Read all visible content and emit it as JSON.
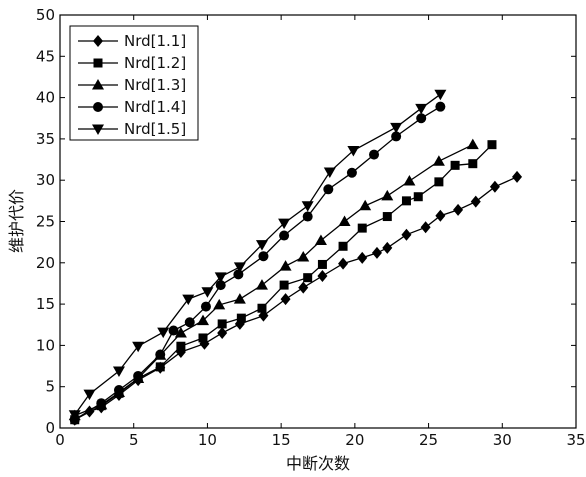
{
  "chart_data": {
    "type": "line",
    "xlabel": "中断次数",
    "ylabel": "维护代价",
    "xlim": [
      0,
      35
    ],
    "ylim": [
      0,
      50
    ],
    "x_ticks": [
      0,
      5,
      10,
      15,
      20,
      25,
      30,
      35
    ],
    "y_ticks": [
      0,
      5,
      10,
      15,
      20,
      25,
      30,
      35,
      40,
      45,
      50
    ],
    "grid": false,
    "legend_position": "top-left",
    "series": [
      {
        "name": "Nrd[1.1]",
        "marker": "diamond",
        "x": [
          1,
          2,
          2.8,
          4,
          5.3,
          6.8,
          8.2,
          9.8,
          11,
          12.2,
          13.8,
          15.3,
          16.5,
          17.8,
          19.2,
          20.5,
          21.5,
          22.2,
          23.5,
          24.8,
          25.8,
          27,
          28.2,
          29.5,
          31
        ],
        "y": [
          1,
          2,
          2.5,
          4,
          5.8,
          7.3,
          9.2,
          10.2,
          11.5,
          12.6,
          13.6,
          15.6,
          17,
          18.4,
          19.9,
          20.6,
          21.2,
          21.8,
          23.4,
          24.3,
          25.7,
          26.4,
          27.4,
          29.2,
          30.4
        ]
      },
      {
        "name": "Nrd[1.2]",
        "marker": "square",
        "x": [
          1,
          2.8,
          4,
          5.3,
          6.8,
          8.2,
          9.7,
          11,
          12.3,
          13.7,
          15.2,
          16.8,
          17.8,
          19.2,
          20.5,
          22.2,
          23.5,
          24.3,
          25.7,
          26.8,
          28,
          29.3
        ],
        "y": [
          1,
          2.7,
          4.2,
          6,
          7.4,
          9.9,
          10.9,
          12.6,
          13.3,
          14.5,
          17.3,
          18.2,
          19.8,
          22,
          24.2,
          25.6,
          27.5,
          28,
          29.8,
          31.8,
          32,
          34.3
        ]
      },
      {
        "name": "Nrd[1.3]",
        "marker": "triangle-up",
        "x": [
          1,
          2.8,
          4,
          5.3,
          6.8,
          8.2,
          9.7,
          10.8,
          12.2,
          13.7,
          15.3,
          16.5,
          17.7,
          19.3,
          20.7,
          22.2,
          23.7,
          25.7,
          28
        ],
        "y": [
          1.5,
          2.8,
          4.3,
          6,
          8.8,
          11.5,
          13,
          14.9,
          15.6,
          17.3,
          19.6,
          20.7,
          22.7,
          25,
          26.9,
          28.1,
          29.9,
          32.3,
          34.3
        ]
      },
      {
        "name": "Nrd[1.4]",
        "marker": "circle",
        "x": [
          1,
          2.8,
          4,
          5.3,
          6.8,
          7.7,
          8.8,
          9.9,
          10.9,
          12.1,
          13.8,
          15.2,
          16.8,
          18.2,
          19.8,
          21.3,
          22.8,
          24.5,
          25.8
        ],
        "y": [
          1,
          3,
          4.6,
          6.3,
          8.9,
          11.8,
          12.8,
          14.7,
          17.3,
          18.6,
          20.8,
          23.3,
          25.6,
          28.9,
          30.9,
          33.1,
          35.3,
          37.5,
          38.9
        ]
      },
      {
        "name": "Nrd[1.5]",
        "marker": "triangle-down",
        "x": [
          1,
          2,
          4,
          5.3,
          7,
          8.7,
          10,
          10.9,
          12.2,
          13.7,
          15.2,
          16.8,
          18.3,
          19.9,
          22.8,
          24.5,
          25.8
        ],
        "y": [
          1.6,
          4.1,
          6.9,
          9.9,
          11.6,
          15.6,
          16.5,
          18.3,
          19.5,
          22.2,
          24.8,
          26.9,
          31,
          33.6,
          36.4,
          38.7,
          40.4
        ]
      }
    ]
  }
}
